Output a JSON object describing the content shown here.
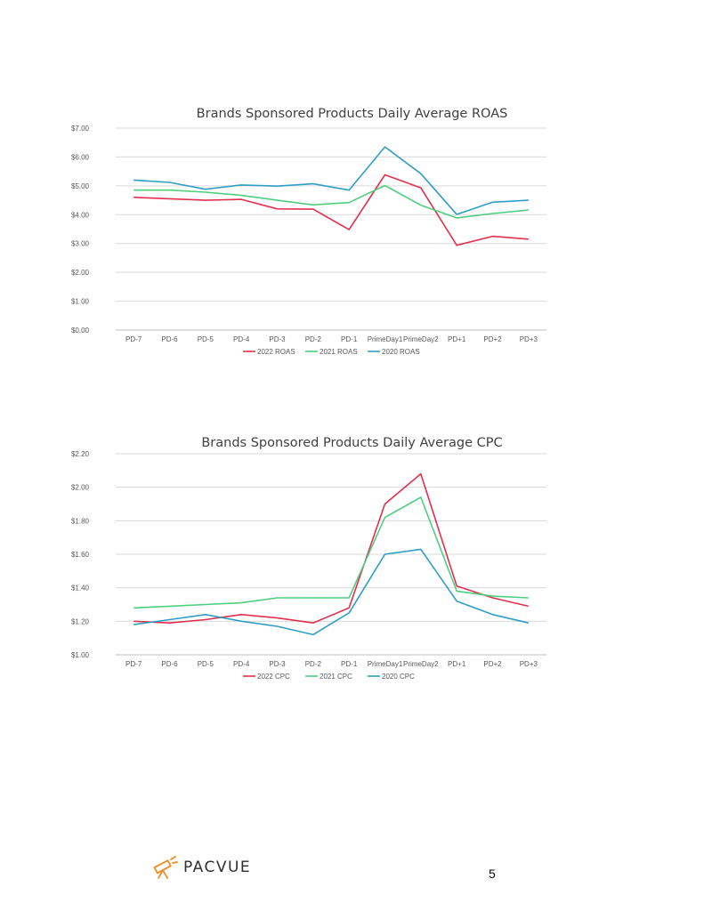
{
  "chart_data": [
    {
      "type": "line",
      "title": "Brands Sponsored Products Daily Average ROAS",
      "categories": [
        "PD-7",
        "PD-6",
        "PD-5",
        "PD-4",
        "PD-3",
        "PD-2",
        "PD-1",
        "PrimeDay1",
        "PrimeDay2",
        "PD+1",
        "PD+2",
        "PD+3"
      ],
      "y_ticks": [
        "$0.00",
        "$1.00",
        "$2.00",
        "$3.00",
        "$4.00",
        "$5.00",
        "$6.00",
        "$7.00"
      ],
      "ylim": [
        0,
        7
      ],
      "grid": true,
      "legend_position": "bottom",
      "series": [
        {
          "name": "2022 ROAS",
          "color": "#e0304e",
          "values": [
            4.6,
            4.55,
            4.5,
            4.53,
            4.2,
            4.19,
            3.48,
            5.38,
            4.93,
            2.94,
            3.25,
            3.15
          ]
        },
        {
          "name": "2021 ROAS",
          "color": "#4dcf7f",
          "values": [
            4.85,
            4.85,
            4.78,
            4.67,
            4.5,
            4.34,
            4.42,
            5.01,
            4.33,
            3.89,
            4.04,
            4.16
          ]
        },
        {
          "name": "2020 ROAS",
          "color": "#2f9ec4",
          "values": [
            5.2,
            5.12,
            4.88,
            5.03,
            4.99,
            5.07,
            4.85,
            6.35,
            5.42,
            4.01,
            4.43,
            4.5
          ]
        }
      ]
    },
    {
      "type": "line",
      "title": "Brands Sponsored Products Daily Average CPC",
      "categories": [
        "PD-7",
        "PD-6",
        "PD-5",
        "PD-4",
        "PD-3",
        "PD-2",
        "PD-1",
        "PrimeDay1",
        "PrimeDay2",
        "PD+1",
        "PD+2",
        "PD+3"
      ],
      "y_ticks": [
        "$1.00",
        "$1.20",
        "$1.40",
        "$1.60",
        "$1.80",
        "$2.00",
        "$2.20"
      ],
      "ylim": [
        1.0,
        2.2
      ],
      "grid": true,
      "legend_position": "bottom",
      "series": [
        {
          "name": "2022 CPC",
          "color": "#e0304e",
          "values": [
            1.2,
            1.19,
            1.21,
            1.24,
            1.22,
            1.19,
            1.28,
            1.9,
            2.08,
            1.41,
            1.34,
            1.29
          ]
        },
        {
          "name": "2021 CPC",
          "color": "#4dcf7f",
          "values": [
            1.28,
            1.29,
            1.3,
            1.31,
            1.34,
            1.34,
            1.34,
            1.82,
            1.94,
            1.38,
            1.35,
            1.34
          ]
        },
        {
          "name": "2020 CPC",
          "color": "#2f9ec4",
          "values": [
            1.18,
            1.21,
            1.24,
            1.2,
            1.17,
            1.12,
            1.25,
            1.6,
            1.63,
            1.32,
            1.24,
            1.19
          ]
        }
      ]
    }
  ],
  "footer": {
    "logo_text": "PACVUE",
    "logo_icon": "telescope-icon",
    "page_number": "5"
  },
  "colors": {
    "logo_accent": "#f08a24",
    "logo_text": "#2f2f2f"
  }
}
